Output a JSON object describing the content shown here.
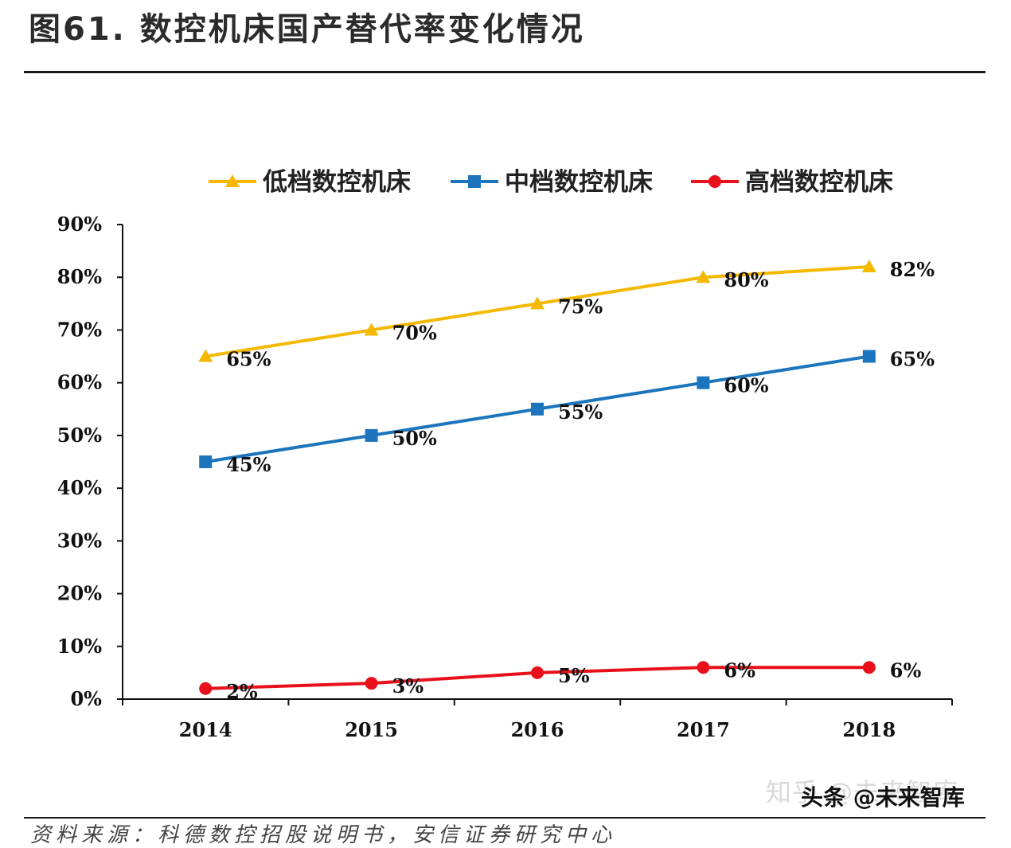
{
  "figure": {
    "title": "图61. 数控机床国产替代率变化情况",
    "source": "资料来源：科德数控招股说明书，安信证券研究中心",
    "watermark_primary": "知乎 @未来智库",
    "watermark_secondary": "头条 @未来智库"
  },
  "chart_data": {
    "type": "line",
    "title": "",
    "xlabel": "",
    "ylabel": "",
    "categories": [
      "2014",
      "2015",
      "2016",
      "2017",
      "2018"
    ],
    "ylim": [
      0,
      90
    ],
    "yticks": [
      "0%",
      "10%",
      "20%",
      "30%",
      "40%",
      "50%",
      "60%",
      "70%",
      "80%",
      "90%"
    ],
    "legend_position": "top",
    "grid": false,
    "series": [
      {
        "name": "低档数控机床",
        "values": [
          65,
          70,
          75,
          80,
          82
        ],
        "labels": [
          "65%",
          "70%",
          "75%",
          "80%",
          "82%"
        ],
        "color": "#f5b800",
        "marker": "triangle"
      },
      {
        "name": "中档数控机床",
        "values": [
          45,
          50,
          55,
          60,
          65
        ],
        "labels": [
          "45%",
          "50%",
          "55%",
          "60%",
          "65%"
        ],
        "color": "#1c75bc",
        "marker": "square"
      },
      {
        "name": "高档数控机床",
        "values": [
          2,
          3,
          5,
          6,
          6
        ],
        "labels": [
          "2%",
          "3%",
          "5%",
          "6%",
          "6%"
        ],
        "color": "#e8101a",
        "marker": "circle"
      }
    ]
  }
}
